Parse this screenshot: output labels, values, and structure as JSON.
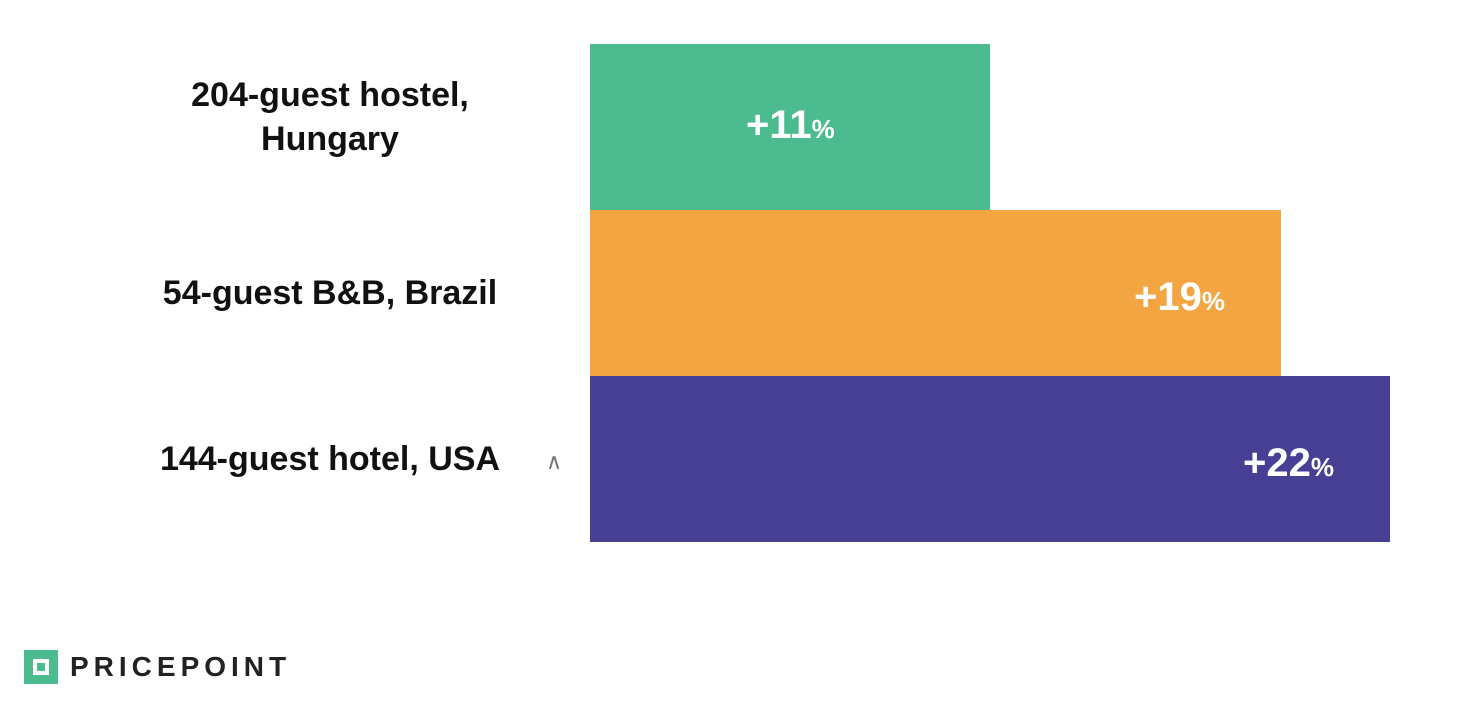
{
  "chart_data": {
    "type": "bar",
    "orientation": "horizontal",
    "categories": [
      "204-guest hostel,\nHungary",
      "54-guest B&B, Brazil",
      "144-guest hotel, USA"
    ],
    "values": [
      11,
      19,
      22
    ],
    "value_labels": [
      "+11",
      "+19",
      "+22"
    ],
    "value_unit": "%",
    "colors": [
      "#4cbb8f",
      "#f2a540",
      "#473f94"
    ],
    "xlim": [
      0,
      22
    ],
    "grid": false,
    "legend": "none"
  },
  "stray_mark": "∧",
  "logo": {
    "text": "PRICEPOINT",
    "mark_color": "#4cbb8f"
  }
}
